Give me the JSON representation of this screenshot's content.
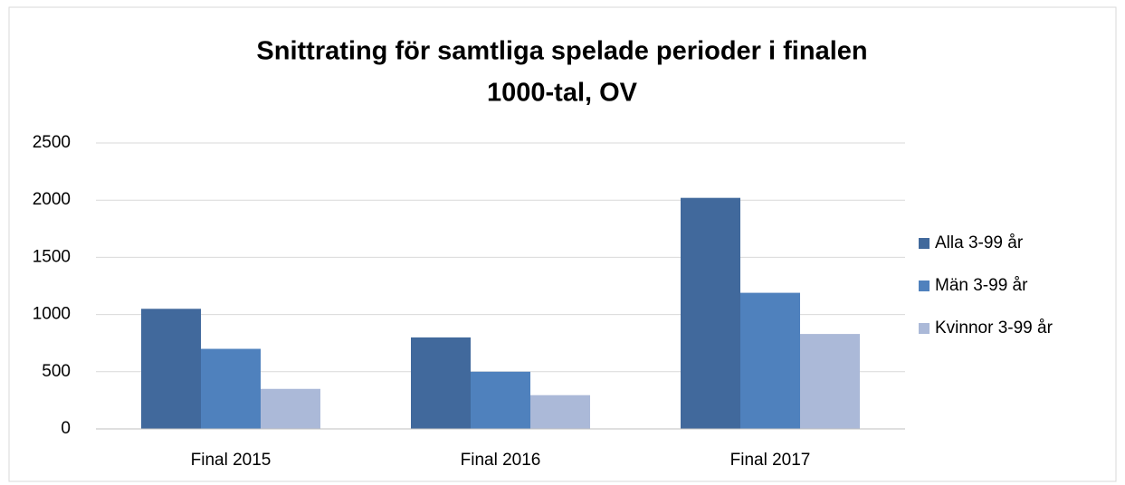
{
  "chart_data": {
    "type": "bar",
    "title": [
      "Snittrating för samtliga spelade perioder i finalen",
      "1000-tal, OV"
    ],
    "categories": [
      "Final 2015",
      "Final 2016",
      "Final 2017"
    ],
    "series": [
      {
        "name": "Alla 3-99 år",
        "color": "#41699c",
        "values": [
          1050,
          800,
          2020
        ]
      },
      {
        "name": "Män 3-99 år",
        "color": "#4f81bd",
        "values": [
          700,
          500,
          1190
        ]
      },
      {
        "name": "Kvinnor 3-99 år",
        "color": "#abb9d8",
        "values": [
          350,
          295,
          830
        ]
      }
    ],
    "ylim": [
      0,
      2500
    ],
    "yticks": [
      0,
      500,
      1000,
      1500,
      2000,
      2500
    ],
    "grid": true,
    "legend": "right"
  }
}
